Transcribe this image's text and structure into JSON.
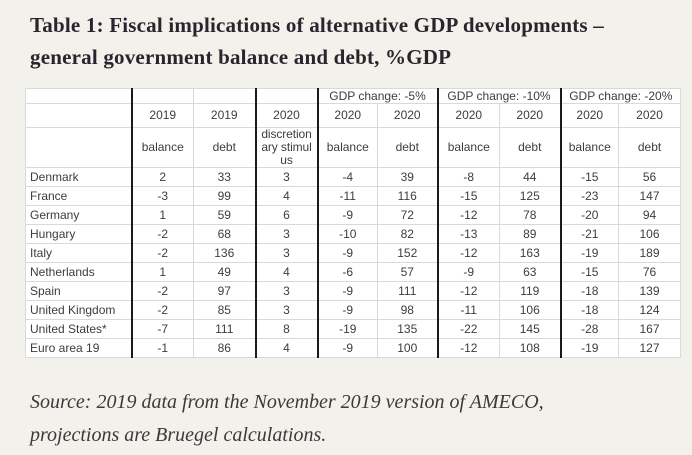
{
  "page": {
    "background_color": "#f3f1ec",
    "table_background_color": "#ffffff",
    "grid_line_color": "#d9d9d9",
    "group_border_color": "#1a1a1a",
    "title_color": "#28252d",
    "text_color": "#3d3d3d"
  },
  "title": {
    "line1": "Table 1: Fiscal implications of alternative GDP developments –",
    "line2": "general government balance and debt, %GDP"
  },
  "source": {
    "line1": "Source: 2019 data from the November 2019 version of AMECO,",
    "line2": "projections are Bruegel calculations."
  },
  "table": {
    "scenarios": [
      "GDP change: -5%",
      "GDP change: -10%",
      "GDP change: -20%"
    ],
    "year_row": [
      "2019",
      "2019",
      "2020",
      "2020",
      "2020",
      "2020",
      "2020",
      "2020",
      "2020"
    ],
    "sub_row": [
      "balance",
      "debt",
      "discretionary stimulus",
      "balance",
      "debt",
      "balance",
      "debt",
      "balance",
      "debt"
    ],
    "rows": [
      {
        "country": "Denmark",
        "values": [
          2,
          33,
          3,
          -4,
          39,
          -8,
          44,
          -15,
          56
        ]
      },
      {
        "country": "France",
        "values": [
          -3,
          99,
          4,
          -11,
          116,
          -15,
          125,
          -23,
          147
        ]
      },
      {
        "country": "Germany",
        "values": [
          1,
          59,
          6,
          -9,
          72,
          -12,
          78,
          -20,
          94
        ]
      },
      {
        "country": "Hungary",
        "values": [
          -2,
          68,
          3,
          -10,
          82,
          -13,
          89,
          -21,
          106
        ]
      },
      {
        "country": "Italy",
        "values": [
          -2,
          136,
          3,
          -9,
          152,
          -12,
          163,
          -19,
          189
        ]
      },
      {
        "country": "Netherlands",
        "values": [
          1,
          49,
          4,
          -6,
          57,
          -9,
          63,
          -15,
          76
        ]
      },
      {
        "country": "Spain",
        "values": [
          -2,
          97,
          3,
          -9,
          111,
          -12,
          119,
          -18,
          139
        ]
      },
      {
        "country": "United Kingdom",
        "values": [
          -2,
          85,
          3,
          -9,
          98,
          -11,
          106,
          -18,
          124
        ]
      },
      {
        "country": "United States*",
        "values": [
          -7,
          111,
          8,
          -19,
          135,
          -22,
          145,
          -28,
          167
        ]
      },
      {
        "country": "Euro area 19",
        "values": [
          -1,
          86,
          4,
          -9,
          100,
          -12,
          108,
          -19,
          127
        ]
      }
    ]
  }
}
